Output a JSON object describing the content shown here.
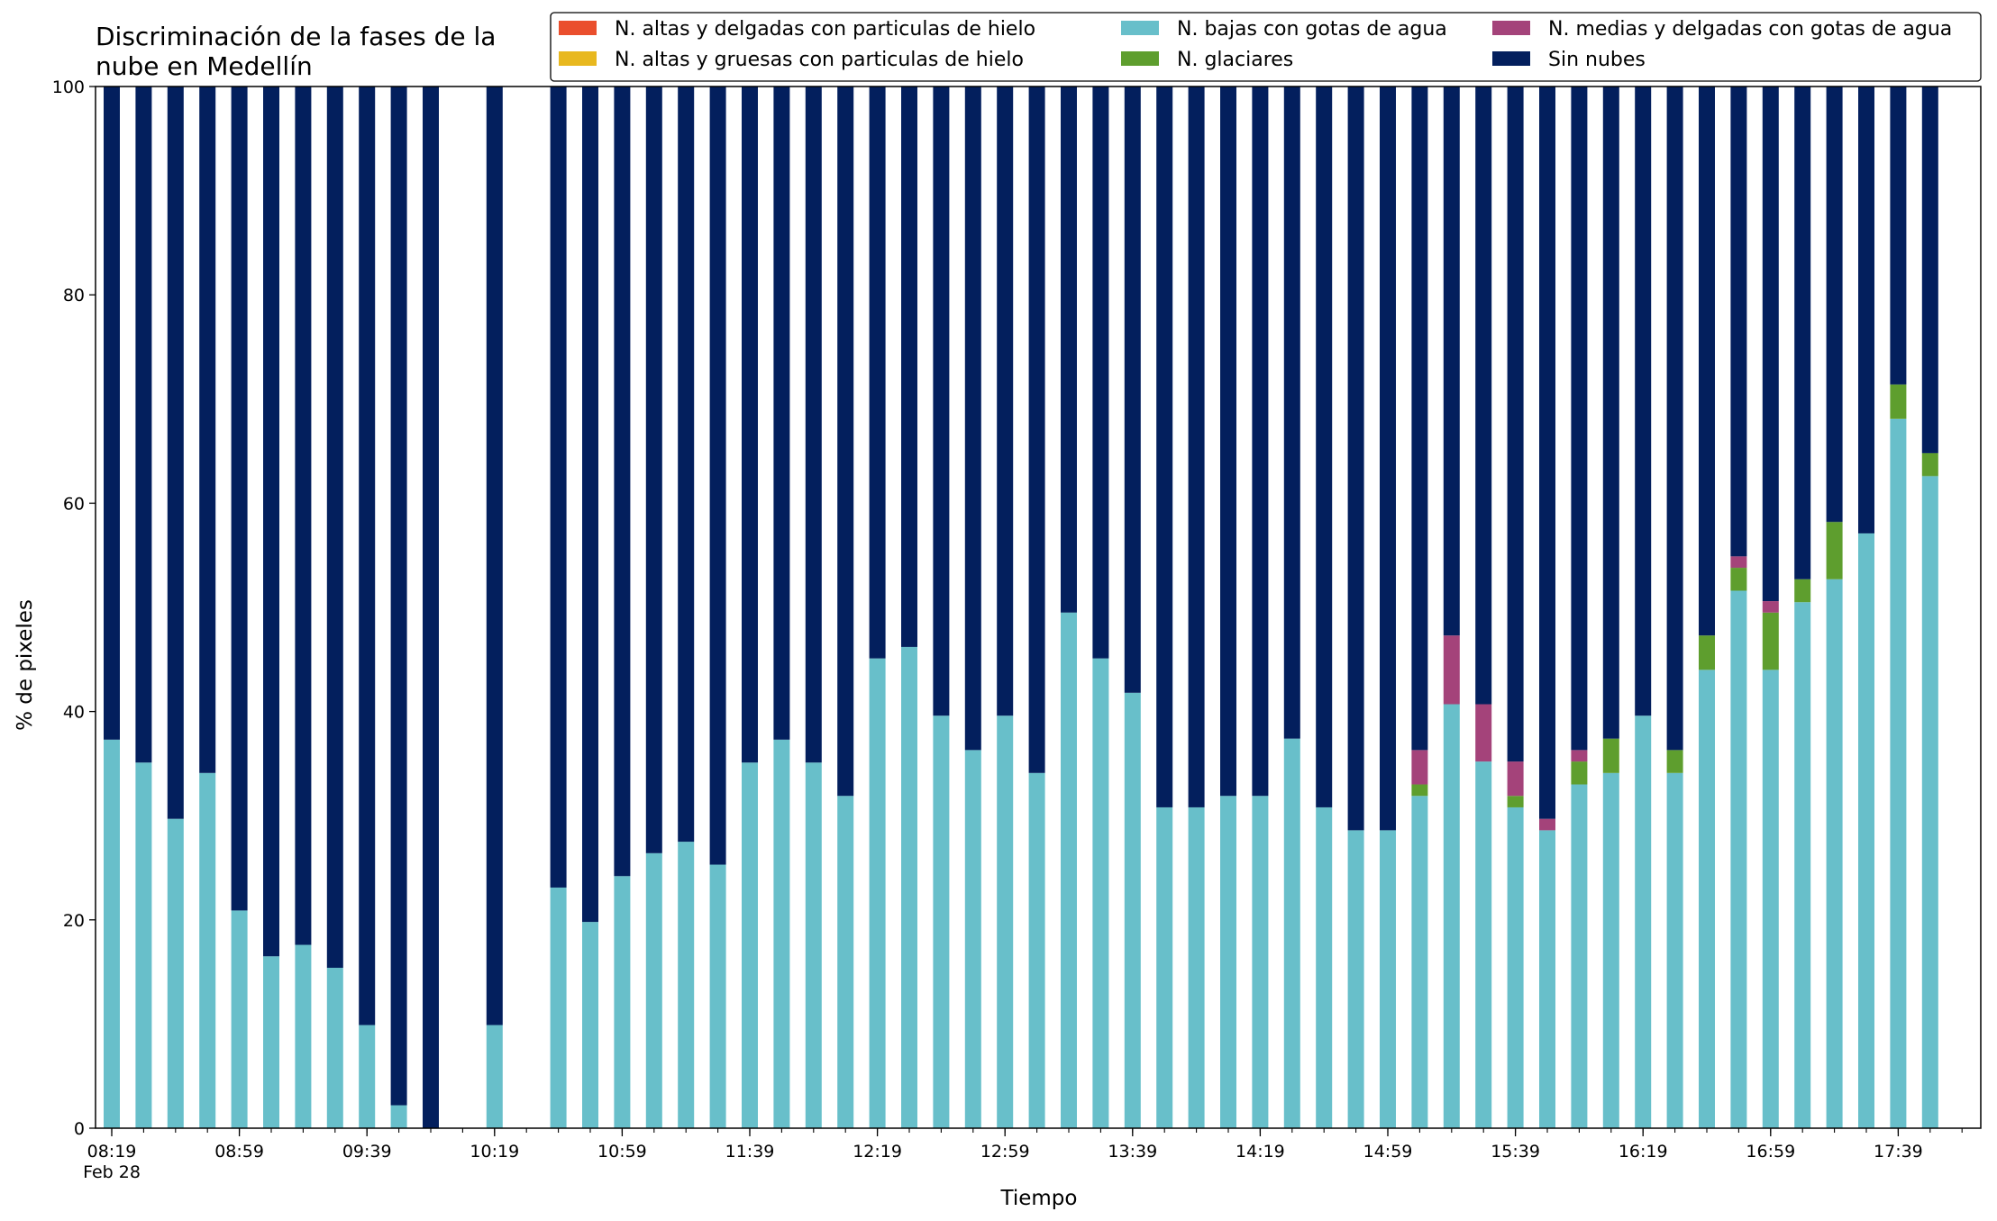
{
  "chart_data": {
    "type": "bar",
    "stacked": true,
    "title_lines": [
      "Discriminación de la fases de la",
      "nube en Medellín"
    ],
    "xlabel": "Tiempo",
    "ylabel": "% de pixeles",
    "ylim": [
      0,
      100
    ],
    "yticks": [
      0,
      20,
      40,
      60,
      80,
      100
    ],
    "categories": [
      "08:19",
      "08:29",
      "08:39",
      "08:49",
      "08:59",
      "09:09",
      "09:19",
      "09:29",
      "09:39",
      "09:49",
      "09:59",
      "10:09",
      "10:19",
      "10:29",
      "10:39",
      "10:49",
      "10:59",
      "11:09",
      "11:19",
      "11:29",
      "11:39",
      "11:49",
      "11:59",
      "12:09",
      "12:19",
      "12:29",
      "12:39",
      "12:49",
      "12:59",
      "13:09",
      "13:19",
      "13:29",
      "13:39",
      "13:49",
      "13:59",
      "14:09",
      "14:19",
      "14:29",
      "14:39",
      "14:49",
      "14:59",
      "15:09",
      "15:19",
      "15:29",
      "15:39",
      "15:49",
      "15:59",
      "16:09",
      "16:19",
      "16:29",
      "16:39",
      "16:49",
      "16:59",
      "17:09",
      "17:19",
      "17:29",
      "17:39",
      "17:49"
    ],
    "xtick_labels": [
      {
        "index": 0,
        "label": "08:19",
        "sublabel": "Feb 28"
      },
      {
        "index": 4,
        "label": "08:59"
      },
      {
        "index": 8,
        "label": "09:39"
      },
      {
        "index": 12,
        "label": "10:19"
      },
      {
        "index": 16,
        "label": "10:59"
      },
      {
        "index": 20,
        "label": "11:39"
      },
      {
        "index": 24,
        "label": "12:19"
      },
      {
        "index": 28,
        "label": "12:59"
      },
      {
        "index": 32,
        "label": "13:39"
      },
      {
        "index": 36,
        "label": "14:19"
      },
      {
        "index": 40,
        "label": "14:59"
      },
      {
        "index": 44,
        "label": "15:39"
      },
      {
        "index": 48,
        "label": "16:19"
      },
      {
        "index": 52,
        "label": "16:59"
      },
      {
        "index": 56,
        "label": "17:39"
      }
    ],
    "present": [
      true,
      true,
      true,
      true,
      true,
      true,
      true,
      true,
      true,
      true,
      true,
      false,
      true,
      false,
      true,
      true,
      true,
      true,
      true,
      true,
      true,
      true,
      true,
      true,
      true,
      true,
      true,
      true,
      true,
      true,
      true,
      true,
      true,
      true,
      true,
      true,
      true,
      true,
      true,
      true,
      true,
      true,
      true,
      true,
      true,
      true,
      true,
      true,
      true,
      true,
      true,
      true,
      true,
      true,
      true,
      true,
      true,
      true
    ],
    "series": [
      {
        "name": "N. bajas con gotas de agua",
        "color": "#68bfca",
        "values": [
          37.3,
          35.1,
          29.7,
          34.1,
          20.9,
          16.5,
          17.6,
          15.4,
          9.9,
          2.2,
          0,
          0,
          9.9,
          0,
          23.1,
          19.8,
          24.2,
          26.4,
          27.5,
          25.3,
          35.1,
          37.3,
          35.1,
          31.9,
          45.1,
          46.2,
          39.6,
          36.3,
          39.6,
          34.1,
          49.5,
          45.1,
          41.8,
          30.8,
          30.8,
          31.9,
          31.9,
          37.4,
          30.8,
          28.6,
          28.6,
          31.9,
          40.7,
          35.2,
          30.8,
          28.6,
          33.0,
          34.1,
          39.6,
          34.1,
          44.0,
          51.6,
          44.0,
          50.5,
          52.7,
          57.1,
          68.1,
          62.6
        ]
      },
      {
        "name": "N. glaciares",
        "color": "#5e9e2e",
        "values": [
          0,
          0,
          0,
          0,
          0,
          0,
          0,
          0,
          0,
          0,
          0,
          0,
          0,
          0,
          0,
          0,
          0,
          0,
          0,
          0,
          0,
          0,
          0,
          0,
          0,
          0,
          0,
          0,
          0,
          0,
          0,
          0,
          0,
          0,
          0,
          0,
          0,
          0,
          0,
          0,
          0,
          1.1,
          0,
          0,
          1.1,
          0,
          2.2,
          3.3,
          0,
          2.2,
          3.3,
          2.2,
          5.5,
          2.2,
          5.5,
          0,
          3.3,
          2.2
        ]
      },
      {
        "name": "N. medias y delgadas con gotas de agua",
        "color": "#a4437a",
        "values": [
          0,
          0,
          0,
          0,
          0,
          0,
          0,
          0,
          0,
          0,
          0,
          0,
          0,
          0,
          0,
          0,
          0,
          0,
          0,
          0,
          0,
          0,
          0,
          0,
          0,
          0,
          0,
          0,
          0,
          0,
          0,
          0,
          0,
          0,
          0,
          0,
          0,
          0,
          0,
          0,
          0,
          3.3,
          6.6,
          5.5,
          3.3,
          1.1,
          1.1,
          0,
          0,
          0,
          0,
          1.1,
          1.1,
          0,
          0,
          0,
          0,
          0
        ]
      },
      {
        "name": "N. altas y delgadas con particulas de hielo",
        "color": "#ea4f2d",
        "values": [
          0,
          0,
          0,
          0,
          0,
          0,
          0,
          0,
          0,
          0,
          0,
          0,
          0,
          0,
          0,
          0,
          0,
          0,
          0,
          0,
          0,
          0,
          0,
          0,
          0,
          0,
          0,
          0,
          0,
          0,
          0,
          0,
          0,
          0,
          0,
          0,
          0,
          0,
          0,
          0,
          0,
          0,
          0,
          0,
          0,
          0,
          0,
          0,
          0,
          0,
          0,
          0,
          0,
          0,
          0,
          0,
          0,
          0
        ]
      },
      {
        "name": "N. altas y gruesas con particulas de hielo",
        "color": "#e8b81f",
        "values": [
          0,
          0,
          0,
          0,
          0,
          0,
          0,
          0,
          0,
          0,
          0,
          0,
          0,
          0,
          0,
          0,
          0,
          0,
          0,
          0,
          0,
          0,
          0,
          0,
          0,
          0,
          0,
          0,
          0,
          0,
          0,
          0,
          0,
          0,
          0,
          0,
          0,
          0,
          0,
          0,
          0,
          0,
          0,
          0,
          0,
          0,
          0,
          0,
          0,
          0,
          0,
          0,
          0,
          0,
          0,
          0,
          0,
          0
        ]
      },
      {
        "name": "Sin nubes",
        "color": "#031f5d",
        "values": [
          62.7,
          64.9,
          70.3,
          65.9,
          79.1,
          83.5,
          82.4,
          84.6,
          90.1,
          97.8,
          100,
          0,
          90.1,
          0,
          76.9,
          80.2,
          75.8,
          73.6,
          72.5,
          74.7,
          64.9,
          62.7,
          64.9,
          68.1,
          54.9,
          53.8,
          60.4,
          63.7,
          60.4,
          65.9,
          50.5,
          54.9,
          58.2,
          69.2,
          69.2,
          68.1,
          68.1,
          62.6,
          69.2,
          71.4,
          71.4,
          63.7,
          52.7,
          59.3,
          64.8,
          70.3,
          63.7,
          62.6,
          60.4,
          63.7,
          52.7,
          45.1,
          49.4,
          47.3,
          41.8,
          42.9,
          28.6,
          35.2
        ]
      }
    ],
    "legend": {
      "placement": "top-right, above axes",
      "columns": [
        [
          "N. altas y delgadas con particulas de hielo",
          "N. altas y gruesas con particulas de hielo"
        ],
        [
          "N. bajas con gotas de agua",
          "N. glaciares"
        ],
        [
          "N. medias y delgadas con gotas de agua",
          "Sin nubes"
        ]
      ]
    },
    "grid": false
  }
}
